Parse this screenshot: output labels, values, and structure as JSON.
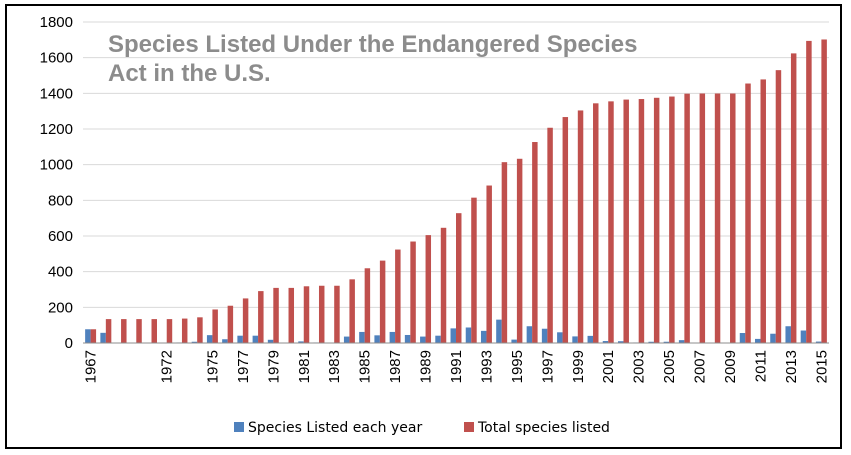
{
  "chart_data": {
    "type": "bar",
    "title": "Species Listed Under the Endangered Species Act in the U.S.",
    "xlabel": "",
    "ylabel": "",
    "ylim": [
      0,
      1800
    ],
    "yticks": [
      "0",
      "200",
      "400",
      "600",
      "800",
      "1000",
      "1200",
      "1400",
      "1600",
      "1800"
    ],
    "grid": true,
    "legend_position": "bottom",
    "categories": [
      "1967",
      "1968",
      "1969",
      "1970",
      "1971",
      "1972",
      "1973",
      "1974",
      "1975",
      "1976",
      "1977",
      "1978",
      "1979",
      "1980",
      "1981",
      "1982",
      "1983",
      "1984",
      "1985",
      "1986",
      "1987",
      "1988",
      "1989",
      "1990",
      "1991",
      "1992",
      "1993",
      "1994",
      "1995",
      "1996",
      "1997",
      "1998",
      "1999",
      "2000",
      "2001",
      "2002",
      "2003",
      "2004",
      "2005",
      "2006",
      "2007",
      "2008",
      "2009",
      "2010",
      "2011",
      "2012",
      "2013",
      "2014",
      "2015"
    ],
    "tick_labels": [
      "1967",
      "1972",
      "1975",
      "1977",
      "1979",
      "1981",
      "1983",
      "1985",
      "1987",
      "1989",
      "1991",
      "1993",
      "1995",
      "1997",
      "1999",
      "2001",
      "2003",
      "2005",
      "2007",
      "2009",
      "2011",
      "2013",
      "2015"
    ],
    "series": [
      {
        "name": "Species Listed each year",
        "color": "#4f81bd",
        "values": [
          77,
          57,
          0,
          0,
          0,
          0,
          3,
          7,
          44,
          21,
          41,
          41,
          18,
          0,
          9,
          3,
          0,
          36,
          62,
          43,
          62,
          45,
          36,
          41,
          82,
          87,
          68,
          131,
          19,
          94,
          80,
          60,
          37,
          40,
          11,
          10,
          3,
          7,
          7,
          16,
          1,
          0,
          0,
          56,
          23,
          52,
          94,
          70,
          8
        ]
      },
      {
        "name": "Total species listed",
        "color": "#c0504d",
        "values": [
          77,
          134,
          134,
          134,
          134,
          134,
          137,
          144,
          188,
          209,
          250,
          291,
          309,
          309,
          318,
          321,
          321,
          357,
          419,
          462,
          524,
          569,
          605,
          646,
          728,
          815,
          883,
          1014,
          1033,
          1127,
          1207,
          1267,
          1304,
          1344,
          1355,
          1365,
          1368,
          1375,
          1382,
          1398,
          1399,
          1399,
          1399,
          1455,
          1478,
          1530,
          1624,
          1694,
          1702
        ]
      }
    ]
  }
}
